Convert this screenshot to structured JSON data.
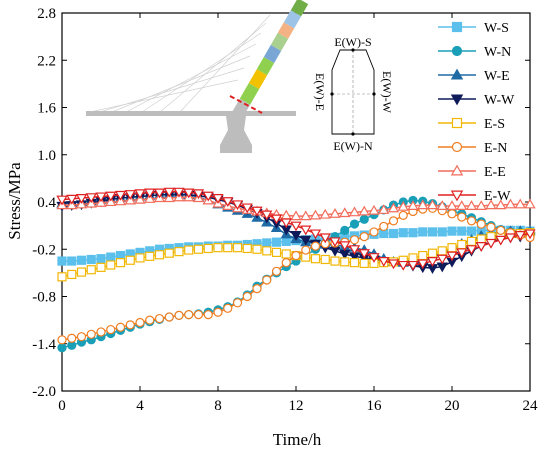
{
  "chart_data": {
    "type": "line",
    "xlabel": "Time/h",
    "ylabel": "Stress/MPa",
    "xlim": [
      0,
      24
    ],
    "ylim": [
      -2.0,
      2.8
    ],
    "xticks": [
      0,
      4,
      8,
      12,
      16,
      20,
      24
    ],
    "yticks": [
      -2.0,
      -1.4,
      -0.8,
      -0.2,
      0.4,
      1.0,
      1.6,
      2.2,
      2.8
    ],
    "legend_position": "top-right",
    "x": [
      0,
      0.5,
      1,
      1.5,
      2,
      2.5,
      3,
      3.5,
      4,
      4.5,
      5,
      5.5,
      6,
      6.5,
      7,
      7.5,
      8,
      8.5,
      9,
      9.5,
      10,
      10.5,
      11,
      11.5,
      12,
      12.5,
      13,
      13.5,
      14,
      14.5,
      15,
      15.5,
      16,
      16.5,
      17,
      17.5,
      18,
      18.5,
      19,
      19.5,
      20,
      20.5,
      21,
      21.5,
      22,
      22.5,
      23,
      23.5,
      24
    ],
    "series": [
      {
        "name": "W-S",
        "color": "#5bc0eb",
        "marker": "square-filled",
        "values": [
          -0.35,
          -0.35,
          -0.34,
          -0.33,
          -0.32,
          -0.3,
          -0.28,
          -0.26,
          -0.24,
          -0.22,
          -0.2,
          -0.19,
          -0.18,
          -0.17,
          -0.17,
          -0.16,
          -0.16,
          -0.15,
          -0.15,
          -0.14,
          -0.13,
          -0.12,
          -0.11,
          -0.1,
          -0.09,
          -0.08,
          -0.07,
          -0.06,
          -0.05,
          -0.04,
          -0.03,
          -0.02,
          -0.01,
          0.0,
          0.0,
          0.01,
          0.01,
          0.02,
          0.02,
          0.02,
          0.03,
          0.03,
          0.03,
          0.04,
          0.04,
          0.04,
          0.04,
          0.04,
          0.03
        ]
      },
      {
        "name": "W-N",
        "color": "#1a9fb8",
        "marker": "circle-filled",
        "values": [
          -1.45,
          -1.42,
          -1.38,
          -1.35,
          -1.31,
          -1.27,
          -1.23,
          -1.19,
          -1.15,
          -1.12,
          -1.09,
          -1.06,
          -1.04,
          -1.03,
          -1.02,
          -1.0,
          -0.97,
          -0.93,
          -0.87,
          -0.78,
          -0.67,
          -0.58,
          -0.5,
          -0.42,
          -0.35,
          -0.28,
          -0.2,
          -0.12,
          -0.04,
          0.04,
          0.12,
          0.18,
          0.24,
          0.3,
          0.36,
          0.4,
          0.42,
          0.41,
          0.38,
          0.34,
          0.29,
          0.25,
          0.2,
          0.15,
          0.1,
          0.05,
          0.02,
          0.0,
          -0.02
        ]
      },
      {
        "name": "W-E",
        "color": "#1f6aa5",
        "marker": "triangle-up-filled",
        "values": [
          0.38,
          0.39,
          0.4,
          0.41,
          0.43,
          0.44,
          0.45,
          0.46,
          0.47,
          0.48,
          0.49,
          0.5,
          0.5,
          0.49,
          0.46,
          0.42,
          0.37,
          0.33,
          0.29,
          0.25,
          0.2,
          0.14,
          0.07,
          -0.01,
          -0.07,
          -0.11,
          -0.13,
          -0.14,
          -0.15,
          -0.16,
          -0.18,
          -0.21,
          -0.26,
          -0.32,
          -0.36,
          -0.37,
          -0.36,
          -0.33,
          -0.29,
          -0.24,
          -0.19,
          -0.13,
          -0.08,
          -0.03,
          0.0,
          0.02,
          0.03,
          0.03,
          0.03
        ]
      },
      {
        "name": "W-W",
        "color": "#0d1b5a",
        "marker": "triangle-down-filled",
        "values": [
          0.35,
          0.36,
          0.37,
          0.39,
          0.41,
          0.43,
          0.45,
          0.46,
          0.47,
          0.48,
          0.49,
          0.49,
          0.49,
          0.49,
          0.48,
          0.46,
          0.43,
          0.4,
          0.36,
          0.31,
          0.26,
          0.2,
          0.13,
          0.05,
          -0.02,
          -0.08,
          -0.13,
          -0.18,
          -0.22,
          -0.26,
          -0.29,
          -0.31,
          -0.33,
          -0.35,
          -0.37,
          -0.39,
          -0.41,
          -0.43,
          -0.44,
          -0.42,
          -0.36,
          -0.29,
          -0.22,
          -0.16,
          -0.11,
          -0.07,
          -0.05,
          -0.04,
          -0.04
        ]
      },
      {
        "name": "E-S",
        "color": "#f2b705",
        "marker": "square-open",
        "values": [
          -0.55,
          -0.52,
          -0.49,
          -0.46,
          -0.43,
          -0.4,
          -0.37,
          -0.34,
          -0.31,
          -0.29,
          -0.27,
          -0.25,
          -0.23,
          -0.21,
          -0.2,
          -0.19,
          -0.18,
          -0.18,
          -0.18,
          -0.19,
          -0.2,
          -0.22,
          -0.24,
          -0.26,
          -0.28,
          -0.3,
          -0.32,
          -0.33,
          -0.35,
          -0.36,
          -0.37,
          -0.38,
          -0.38,
          -0.37,
          -0.36,
          -0.34,
          -0.31,
          -0.28,
          -0.25,
          -0.22,
          -0.18,
          -0.14,
          -0.1,
          -0.07,
          -0.04,
          -0.02,
          0.0,
          0.0,
          0.01
        ]
      },
      {
        "name": "E-N",
        "color": "#ef7e22",
        "marker": "circle-open",
        "values": [
          -1.35,
          -1.33,
          -1.31,
          -1.28,
          -1.25,
          -1.22,
          -1.19,
          -1.16,
          -1.13,
          -1.1,
          -1.08,
          -1.06,
          -1.04,
          -1.03,
          -1.03,
          -1.03,
          -1.0,
          -0.95,
          -0.88,
          -0.8,
          -0.7,
          -0.59,
          -0.48,
          -0.37,
          -0.28,
          -0.21,
          -0.16,
          -0.13,
          -0.12,
          -0.11,
          -0.08,
          -0.04,
          0.02,
          0.09,
          0.16,
          0.23,
          0.28,
          0.31,
          0.32,
          0.29,
          0.25,
          0.21,
          0.16,
          0.12,
          0.08,
          0.04,
          0.01,
          -0.02,
          -0.05
        ]
      },
      {
        "name": "E-E",
        "color": "#f26d5b",
        "marker": "triangle-up-open",
        "values": [
          0.36,
          0.36,
          0.37,
          0.38,
          0.39,
          0.4,
          0.41,
          0.42,
          0.43,
          0.44,
          0.45,
          0.45,
          0.46,
          0.46,
          0.45,
          0.42,
          0.38,
          0.35,
          0.32,
          0.3,
          0.28,
          0.26,
          0.24,
          0.23,
          0.22,
          0.22,
          0.23,
          0.24,
          0.25,
          0.26,
          0.27,
          0.28,
          0.29,
          0.3,
          0.32,
          0.34,
          0.35,
          0.36,
          0.36,
          0.35,
          0.35,
          0.35,
          0.35,
          0.35,
          0.36,
          0.36,
          0.37,
          0.37,
          0.37
        ]
      },
      {
        "name": "E-W",
        "color": "#e02020",
        "marker": "triangle-down-open",
        "values": [
          0.43,
          0.44,
          0.45,
          0.46,
          0.47,
          0.48,
          0.49,
          0.5,
          0.51,
          0.52,
          0.52,
          0.53,
          0.53,
          0.52,
          0.51,
          0.48,
          0.45,
          0.41,
          0.37,
          0.33,
          0.29,
          0.24,
          0.19,
          0.14,
          0.1,
          0.05,
          0.0,
          -0.05,
          -0.1,
          -0.15,
          -0.2,
          -0.25,
          -0.3,
          -0.35,
          -0.38,
          -0.4,
          -0.4,
          -0.38,
          -0.35,
          -0.32,
          -0.28,
          -0.24,
          -0.2,
          -0.16,
          -0.12,
          -0.08,
          -0.05,
          -0.02,
          0.0
        ]
      }
    ]
  },
  "inset": {
    "label_top": "E(W)-S",
    "label_bottom": "E(W)-N",
    "label_left": "E(W)-E",
    "label_right": "E(W)-W"
  }
}
